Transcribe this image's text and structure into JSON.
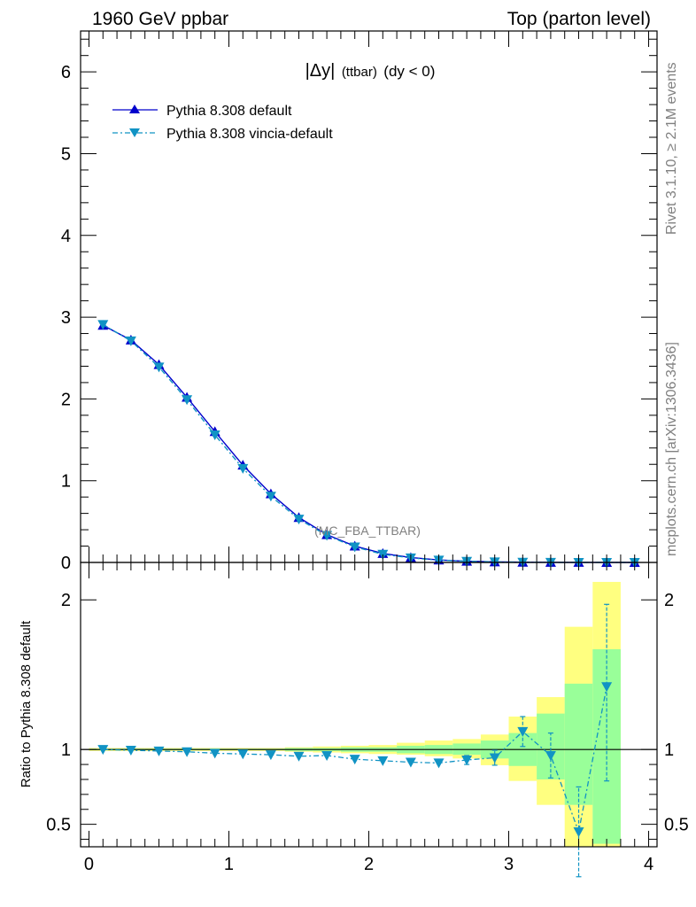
{
  "header": {
    "left": "1960 GeV ppbar",
    "right": "Top (parton level)"
  },
  "side_labels": {
    "rivet": "Rivet 3.1.10, ≥ 2.1M events",
    "mcplots": "mcplots.cern.ch [arXiv:1306.3436]"
  },
  "watermark": "(MC_FBA_TTBAR)",
  "chart_data": [
    {
      "type": "line",
      "title": "|Δy| (ttbar) (dy < 0)",
      "title_parts": [
        "|Δy|",
        "(ttbar)",
        "(dy < 0)"
      ],
      "xlim": [
        -0.06,
        4.06
      ],
      "ylim": [
        0,
        6.5
      ],
      "x_ticks": [
        0,
        1,
        2,
        3,
        4
      ],
      "y_ticks": [
        0,
        1,
        2,
        3,
        4,
        5,
        6
      ],
      "legend_position": "top-left",
      "x": [
        0.1,
        0.3,
        0.5,
        0.7,
        0.9,
        1.1,
        1.3,
        1.5,
        1.7,
        1.9,
        2.1,
        2.3,
        2.5,
        2.7,
        2.9,
        3.1,
        3.3,
        3.5,
        3.7,
        3.9
      ],
      "series": [
        {
          "name": "Pythia 8.308 default",
          "color": "#0000cc",
          "marker": "triangle-up",
          "line": "solid",
          "values": [
            2.9,
            2.72,
            2.42,
            2.02,
            1.6,
            1.19,
            0.84,
            0.55,
            0.34,
            0.2,
            0.11,
            0.06,
            0.03,
            0.015,
            0.007,
            0.003,
            0.0015,
            0.0007,
            0.0003,
            0.0001
          ]
        },
        {
          "name": "Pythia 8.308 vincia-default",
          "color": "#1193c4",
          "marker": "triangle-down",
          "line": "dash-dot",
          "values": [
            2.91,
            2.71,
            2.39,
            1.99,
            1.56,
            1.15,
            0.81,
            0.53,
            0.33,
            0.19,
            0.1,
            0.055,
            0.028,
            0.014,
            0.0066,
            0.0033,
            0.0014,
            0.0003,
            0.0004,
            0.0001
          ]
        }
      ]
    },
    {
      "type": "line",
      "ylabel": "Ratio to Pythia 8.308 default",
      "xlim": [
        -0.06,
        4.06
      ],
      "ylim": [
        0.35,
        2.25
      ],
      "x_ticks": [
        0,
        1,
        2,
        3,
        4
      ],
      "y_ticks": [
        0.5,
        1,
        2
      ],
      "reference_line": 1.0,
      "bands": {
        "x_edges": [
          0.0,
          0.2,
          0.4,
          0.6,
          0.8,
          1.0,
          1.2,
          1.4,
          1.6,
          1.8,
          2.0,
          2.2,
          2.4,
          2.6,
          2.8,
          3.0,
          3.2,
          3.4,
          3.6,
          3.8
        ],
        "yellow_color": "#ffff80",
        "green_color": "#99ff99",
        "yellow_low": [
          0.99,
          0.99,
          0.99,
          0.99,
          0.99,
          0.99,
          0.99,
          0.985,
          0.98,
          0.975,
          0.97,
          0.965,
          0.955,
          0.94,
          0.895,
          0.79,
          0.63,
          0.35,
          0.35
        ],
        "yellow_high": [
          1.01,
          1.01,
          1.01,
          1.01,
          1.01,
          1.01,
          1.01,
          1.015,
          1.02,
          1.025,
          1.03,
          1.045,
          1.06,
          1.07,
          1.1,
          1.22,
          1.35,
          1.82,
          2.12
        ],
        "green_low": [
          0.995,
          0.995,
          0.995,
          0.995,
          0.995,
          0.995,
          0.995,
          0.99,
          0.99,
          0.985,
          0.985,
          0.975,
          0.97,
          0.965,
          0.94,
          0.89,
          0.8,
          0.63,
          0.37
        ],
        "green_high": [
          1.005,
          1.005,
          1.005,
          1.005,
          1.005,
          1.005,
          1.005,
          1.01,
          1.01,
          1.015,
          1.015,
          1.025,
          1.03,
          1.04,
          1.06,
          1.11,
          1.24,
          1.44,
          1.67
        ]
      },
      "series": [
        {
          "name": "Pythia 8.308 vincia-default",
          "color": "#1193c4",
          "marker": "triangle-down",
          "line": "dash-dot",
          "x": [
            0.1,
            0.3,
            0.5,
            0.7,
            0.9,
            1.1,
            1.3,
            1.5,
            1.7,
            1.9,
            2.1,
            2.3,
            2.5,
            2.7,
            2.9,
            3.1,
            3.3,
            3.5,
            3.7
          ],
          "values": [
            1.0,
            0.995,
            0.99,
            0.985,
            0.975,
            0.97,
            0.965,
            0.955,
            0.96,
            0.935,
            0.925,
            0.915,
            0.91,
            0.93,
            0.945,
            1.12,
            0.96,
            0.45,
            1.42
          ],
          "err_low": [
            0.0,
            0.0,
            0.0,
            0.0,
            0.0,
            0.0,
            0.0,
            0.0,
            0.0,
            0.0,
            0.0,
            0.0,
            0.0,
            0.03,
            0.05,
            0.1,
            0.15,
            0.3,
            0.63
          ],
          "err_high": [
            0.0,
            0.0,
            0.0,
            0.0,
            0.0,
            0.0,
            0.0,
            0.0,
            0.0,
            0.0,
            0.0,
            0.0,
            0.0,
            0.03,
            0.05,
            0.1,
            0.15,
            0.3,
            0.55
          ]
        }
      ]
    }
  ]
}
